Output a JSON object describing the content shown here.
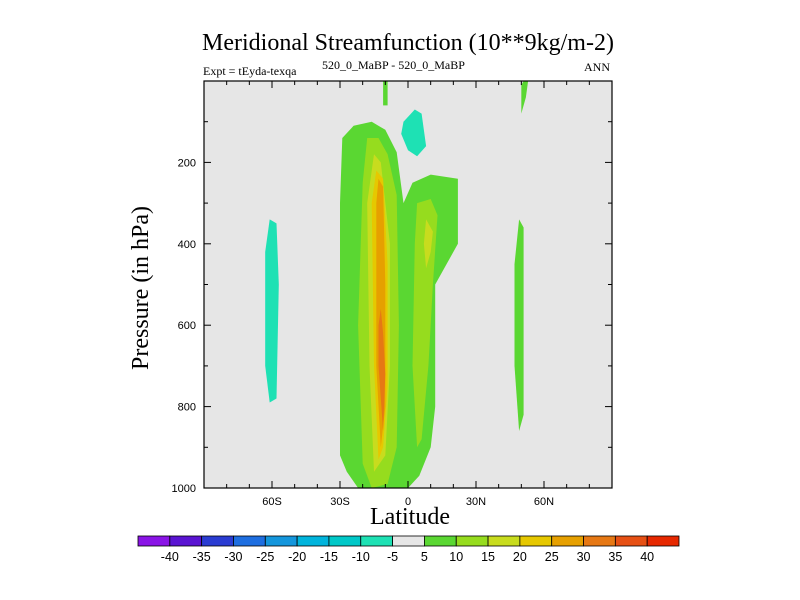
{
  "chart_data": {
    "type": "heatmap",
    "title": "Meridional Streamfunction (10**9kg/m-2)",
    "subtitle_left": "Expt = tEyda-texqa",
    "subtitle_center": "520_0_MaBP - 520_0_MaBP",
    "subtitle_right": "ANN",
    "xlabel": "Latitude",
    "ylabel": "Pressure (in hPa)",
    "xlim": [
      -90,
      90
    ],
    "ylim": [
      1000,
      0
    ],
    "x_ticks": [
      {
        "value": -60,
        "label": "60S"
      },
      {
        "value": -30,
        "label": "30S"
      },
      {
        "value": 0,
        "label": "0"
      },
      {
        "value": 30,
        "label": "30N"
      },
      {
        "value": 60,
        "label": "60N"
      }
    ],
    "y_ticks": [
      {
        "value": 200,
        "label": "200"
      },
      {
        "value": 400,
        "label": "400"
      },
      {
        "value": 600,
        "label": "600"
      },
      {
        "value": 800,
        "label": "800"
      },
      {
        "value": 1000,
        "label": "1000"
      }
    ],
    "colorbar": {
      "labels": [
        "-40",
        "-35",
        "-30",
        "-25",
        "-20",
        "-15",
        "-10",
        "-5",
        "5",
        "10",
        "15",
        "20",
        "25",
        "30",
        "35",
        "40"
      ],
      "colors": [
        "#8a14e6",
        "#5a14d2",
        "#2a3cd2",
        "#1e6ee0",
        "#1496dc",
        "#00b4dc",
        "#00c8c8",
        "#1ee1b4",
        "#e6e6e6",
        "#5ad732",
        "#96dc1e",
        "#c8dc1e",
        "#e6c800",
        "#e6a000",
        "#e67814",
        "#e65014",
        "#e62800"
      ]
    },
    "regions": [
      {
        "label": "-5 to 5",
        "lat": [
          -90,
          90
        ],
        "p": [
          0,
          1000
        ]
      },
      {
        "label": "5 to 10",
        "polygon": [
          [
            -22,
            1000
          ],
          [
            -27,
            960
          ],
          [
            -30,
            920
          ],
          [
            -30,
            300
          ],
          [
            -29,
            140
          ],
          [
            -24,
            110
          ],
          [
            -16,
            100
          ],
          [
            -10,
            120
          ],
          [
            -5,
            175
          ],
          [
            -2,
            300
          ],
          [
            2,
            250
          ],
          [
            10,
            230
          ],
          [
            22,
            240
          ],
          [
            22,
            400
          ],
          [
            12,
            500
          ],
          [
            12,
            800
          ],
          [
            10,
            900
          ],
          [
            5,
            970
          ],
          [
            0,
            1000
          ]
        ]
      },
      {
        "label": "5 to 10",
        "polygon": [
          [
            -11,
            0
          ],
          [
            -9,
            0
          ],
          [
            -9,
            60
          ],
          [
            -11,
            60
          ]
        ]
      },
      {
        "label": "5 to 10",
        "polygon": [
          [
            51,
            0
          ],
          [
            53,
            0
          ],
          [
            52,
            40
          ],
          [
            50,
            80
          ],
          [
            50,
            10
          ]
        ]
      },
      {
        "label": "5 to 10",
        "polygon": [
          [
            49,
            340
          ],
          [
            51,
            360
          ],
          [
            51,
            820
          ],
          [
            49,
            860
          ],
          [
            47,
            700
          ],
          [
            47,
            450
          ]
        ]
      },
      {
        "label": "10 to 15",
        "polygon": [
          [
            -16,
            1000
          ],
          [
            -20,
            940
          ],
          [
            -22,
            600
          ],
          [
            -20,
            250
          ],
          [
            -18,
            140
          ],
          [
            -13,
            140
          ],
          [
            -9,
            180
          ],
          [
            -5,
            280
          ],
          [
            -4,
            600
          ],
          [
            -5,
            900
          ],
          [
            -9,
            990
          ]
        ]
      },
      {
        "label": "10 to 15",
        "polygon": [
          [
            4,
            300
          ],
          [
            10,
            290
          ],
          [
            13,
            330
          ],
          [
            11,
            500
          ],
          [
            9,
            700
          ],
          [
            6,
            880
          ],
          [
            4,
            900
          ],
          [
            2,
            700
          ],
          [
            3,
            400
          ]
        ]
      },
      {
        "label": "15 to 20",
        "polygon": [
          [
            -15,
            960
          ],
          [
            -17,
            700
          ],
          [
            -18,
            300
          ],
          [
            -15,
            180
          ],
          [
            -12,
            200
          ],
          [
            -8,
            400
          ],
          [
            -8,
            700
          ],
          [
            -10,
            920
          ]
        ]
      },
      {
        "label": "15 to 20",
        "polygon": [
          [
            8,
            340
          ],
          [
            11,
            370
          ],
          [
            10,
            420
          ],
          [
            8,
            460
          ],
          [
            7,
            400
          ]
        ]
      },
      {
        "label": "20 to 25",
        "polygon": [
          [
            -13,
            930
          ],
          [
            -15,
            700
          ],
          [
            -16,
            300
          ],
          [
            -14,
            220
          ],
          [
            -11,
            240
          ],
          [
            -9,
            450
          ],
          [
            -9,
            750
          ],
          [
            -11,
            900
          ]
        ]
      },
      {
        "label": "25 to 30",
        "polygon": [
          [
            -12,
            900
          ],
          [
            -14,
            700
          ],
          [
            -14,
            300
          ],
          [
            -13,
            240
          ],
          [
            -11,
            260
          ],
          [
            -10,
            500
          ],
          [
            -10,
            800
          ]
        ]
      },
      {
        "label": "30 to 35",
        "polygon": [
          [
            -11,
            860
          ],
          [
            -13,
            700
          ],
          [
            -13,
            600
          ],
          [
            -12,
            560
          ],
          [
            -11,
            620
          ],
          [
            -10,
            720
          ]
        ]
      },
      {
        "label": "-10 to -5",
        "polygon": [
          [
            -61,
            340
          ],
          [
            -58,
            350
          ],
          [
            -57,
            500
          ],
          [
            -58,
            780
          ],
          [
            -61,
            790
          ],
          [
            -63,
            700
          ],
          [
            -63,
            420
          ]
        ]
      },
      {
        "label": "-10 to -5",
        "polygon": [
          [
            -2,
            100
          ],
          [
            3,
            70
          ],
          [
            6,
            80
          ],
          [
            8,
            160
          ],
          [
            4,
            185
          ],
          [
            0,
            170
          ],
          [
            -3,
            130
          ]
        ]
      }
    ]
  }
}
